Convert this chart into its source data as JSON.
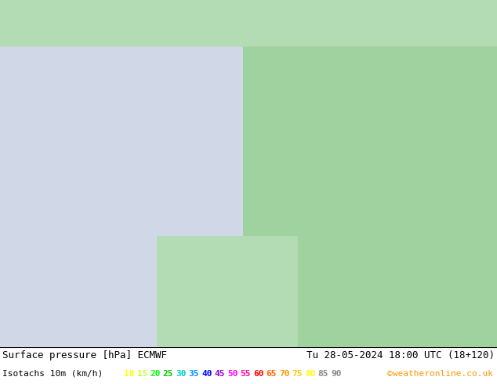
{
  "title_left": "Surface pressure [hPa] ECMWF",
  "title_right": "Tu 28-05-2024 18:00 UTC (18+120)",
  "isotachs_label": "Isotachs 10m (km/h)",
  "copyright": "©weatheronline.co.uk",
  "legend_values": [
    10,
    15,
    20,
    25,
    30,
    35,
    40,
    45,
    50,
    55,
    60,
    65,
    70,
    75,
    80,
    85,
    90
  ],
  "legend_colors": [
    "#ffff00",
    "#c8ff32",
    "#00ff00",
    "#00c800",
    "#00c8c8",
    "#0096ff",
    "#0000ff",
    "#9600c8",
    "#ff00ff",
    "#ff0096",
    "#ff0000",
    "#ff6400",
    "#ff9600",
    "#ffc800",
    "#ffff00",
    "#ffffff",
    "#ffffff"
  ],
  "bg_color": "#aad4aa",
  "bottom_bar_color": "#ffffff",
  "fig_width": 6.34,
  "fig_height": 4.9,
  "dpi": 100,
  "title_fontsize": 9,
  "legend_fontsize": 8,
  "map_ocean_color": "#d0d8e8",
  "map_land_color_light": "#c8e6c8",
  "map_land_color_dark": "#a0c8a0",
  "copyright_color": "#ff9600"
}
